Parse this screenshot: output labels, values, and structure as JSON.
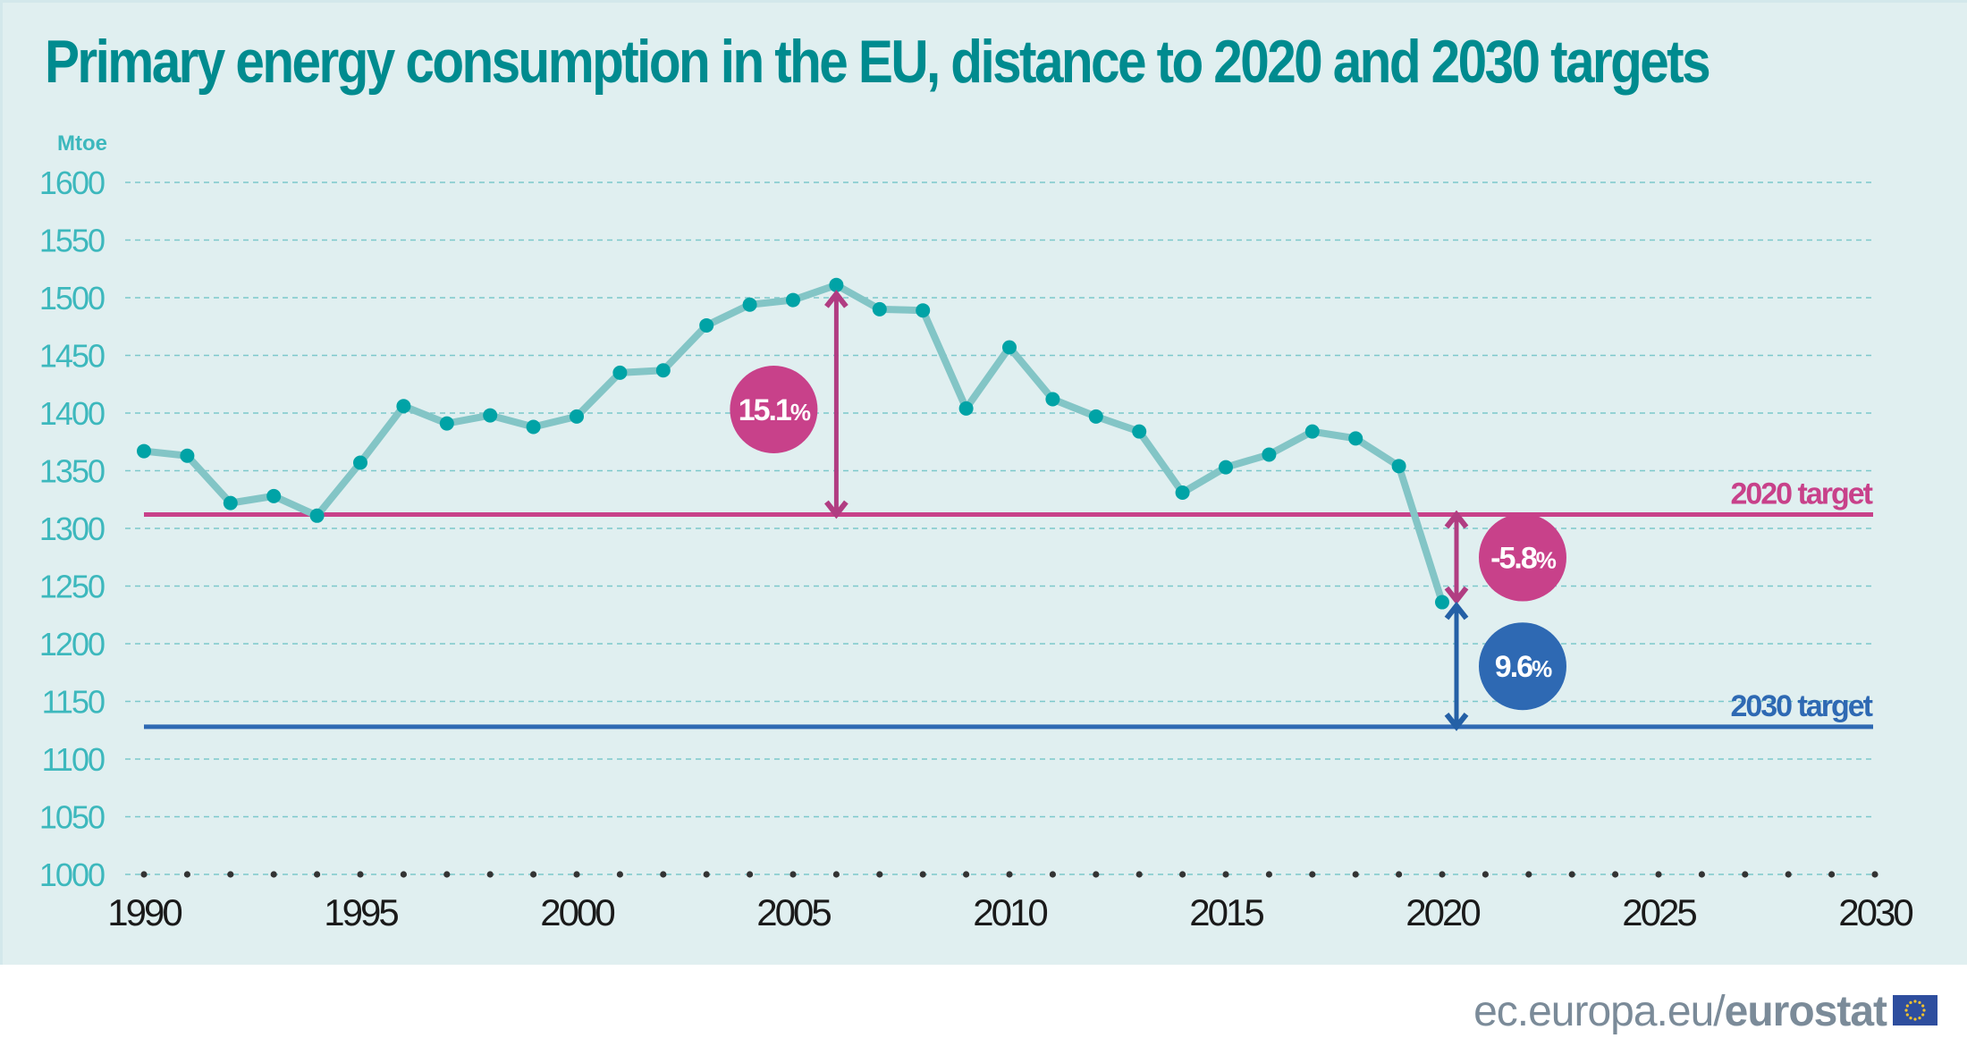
{
  "title": "Primary energy consumption in the EU, distance to 2020 and 2030 targets",
  "footer": {
    "url_prefix": "ec.europa.eu/",
    "url_brand": "eurostat",
    "logo": "eu-flag-icon"
  },
  "colors": {
    "title": "#008b8f",
    "axis_label": "#3db8bd",
    "series_line": "#83c5c6",
    "series_point": "#00a3a6",
    "target_2020": "#c8418a",
    "target_2030": "#2e69b3",
    "arrow_2020": "#b13d82",
    "arrow_2030": "#2460a6",
    "background": "#e0eff0"
  },
  "chart_data": {
    "type": "line",
    "title": "Primary energy consumption in the EU, distance to 2020 and 2030 targets",
    "ylabel": "Mtoe",
    "xlabel": "",
    "ylim": [
      1000,
      1600
    ],
    "xlim": [
      1990,
      2030
    ],
    "yticks": [
      1000,
      1050,
      1100,
      1150,
      1200,
      1250,
      1300,
      1350,
      1400,
      1450,
      1500,
      1550,
      1600
    ],
    "xticks": [
      1990,
      1995,
      2000,
      2005,
      2010,
      2015,
      2020,
      2025,
      2030
    ],
    "grid": true,
    "series": [
      {
        "name": "Primary energy consumption",
        "x": [
          1990,
          1991,
          1992,
          1993,
          1994,
          1995,
          1996,
          1997,
          1998,
          1999,
          2000,
          2001,
          2002,
          2003,
          2004,
          2005,
          2006,
          2007,
          2008,
          2009,
          2010,
          2011,
          2012,
          2013,
          2014,
          2015,
          2016,
          2017,
          2018,
          2019,
          2020
        ],
        "values": [
          1367,
          1363,
          1322,
          1328,
          1311,
          1357,
          1406,
          1391,
          1398,
          1388,
          1397,
          1435,
          1437,
          1476,
          1494,
          1498,
          1511,
          1490,
          1489,
          1404,
          1457,
          1412,
          1397,
          1384,
          1331,
          1353,
          1364,
          1384,
          1378,
          1354,
          1236
        ]
      }
    ],
    "reference_lines": [
      {
        "name": "2020 target",
        "label": "2020 target",
        "value": 1312
      },
      {
        "name": "2030 target",
        "label": "2030 target",
        "value": 1128
      }
    ],
    "annotations": [
      {
        "label_value": "15.1",
        "label_unit": "%",
        "year": 2006,
        "from": 1312,
        "to": 1511,
        "color_key": "target_2020"
      },
      {
        "label_value": "-5.8",
        "label_unit": "%",
        "year": 2020,
        "from": 1312,
        "to": 1236,
        "color_key": "target_2020"
      },
      {
        "label_value": "9.6",
        "label_unit": "%",
        "year": 2020,
        "from": 1236,
        "to": 1128,
        "color_key": "target_2030"
      }
    ]
  }
}
